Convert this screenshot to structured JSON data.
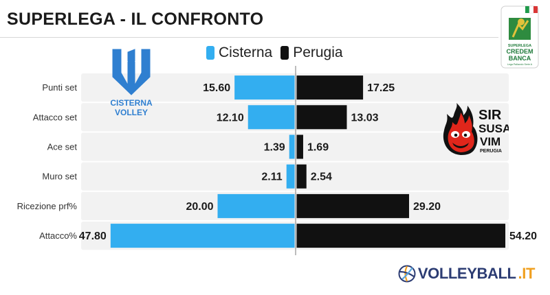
{
  "header": {
    "title": "SUPERLEGA - IL CONFRONTO"
  },
  "legend": {
    "items": [
      {
        "label": "Cisterna",
        "color": "#33aef0"
      },
      {
        "label": "Perugia",
        "color": "#111111"
      }
    ]
  },
  "logos": {
    "cisterna": {
      "line1": "CISTERNA",
      "line2": "VOLLEY",
      "color": "#2f7fd0"
    },
    "perugia": {
      "lines": [
        "SIR",
        "SUSA",
        "VIM",
        "PERUGIA"
      ]
    },
    "superlega": {
      "lines": [
        "SUPERLEGA",
        "CREDEM",
        "BANCA",
        "Lega Pallavolo Serie A"
      ]
    }
  },
  "footer": {
    "brand_main": "VOLLEYBALL",
    "brand_suffix": ".IT"
  },
  "chart_data": {
    "type": "bar",
    "orientation": "horizontal-diverging",
    "title": "SUPERLEGA - IL CONFRONTO",
    "categories": [
      "Punti set",
      "Attacco set",
      "Ace set",
      "Muro set",
      "Ricezione prf%",
      "Attacco%"
    ],
    "series": [
      {
        "name": "Cisterna",
        "color": "#33aef0",
        "values": [
          15.6,
          12.1,
          1.39,
          2.11,
          20.0,
          47.8
        ],
        "labels": [
          "15.60",
          "12.10",
          "1.39",
          "2.11",
          "20.00",
          "47.80"
        ]
      },
      {
        "name": "Perugia",
        "color": "#111111",
        "values": [
          17.25,
          13.03,
          1.69,
          2.54,
          29.2,
          54.2
        ],
        "labels": [
          "17.25",
          "13.03",
          "1.69",
          "2.54",
          "29.20",
          "54.20"
        ]
      }
    ],
    "legend_position": "top-center",
    "grid": false
  }
}
